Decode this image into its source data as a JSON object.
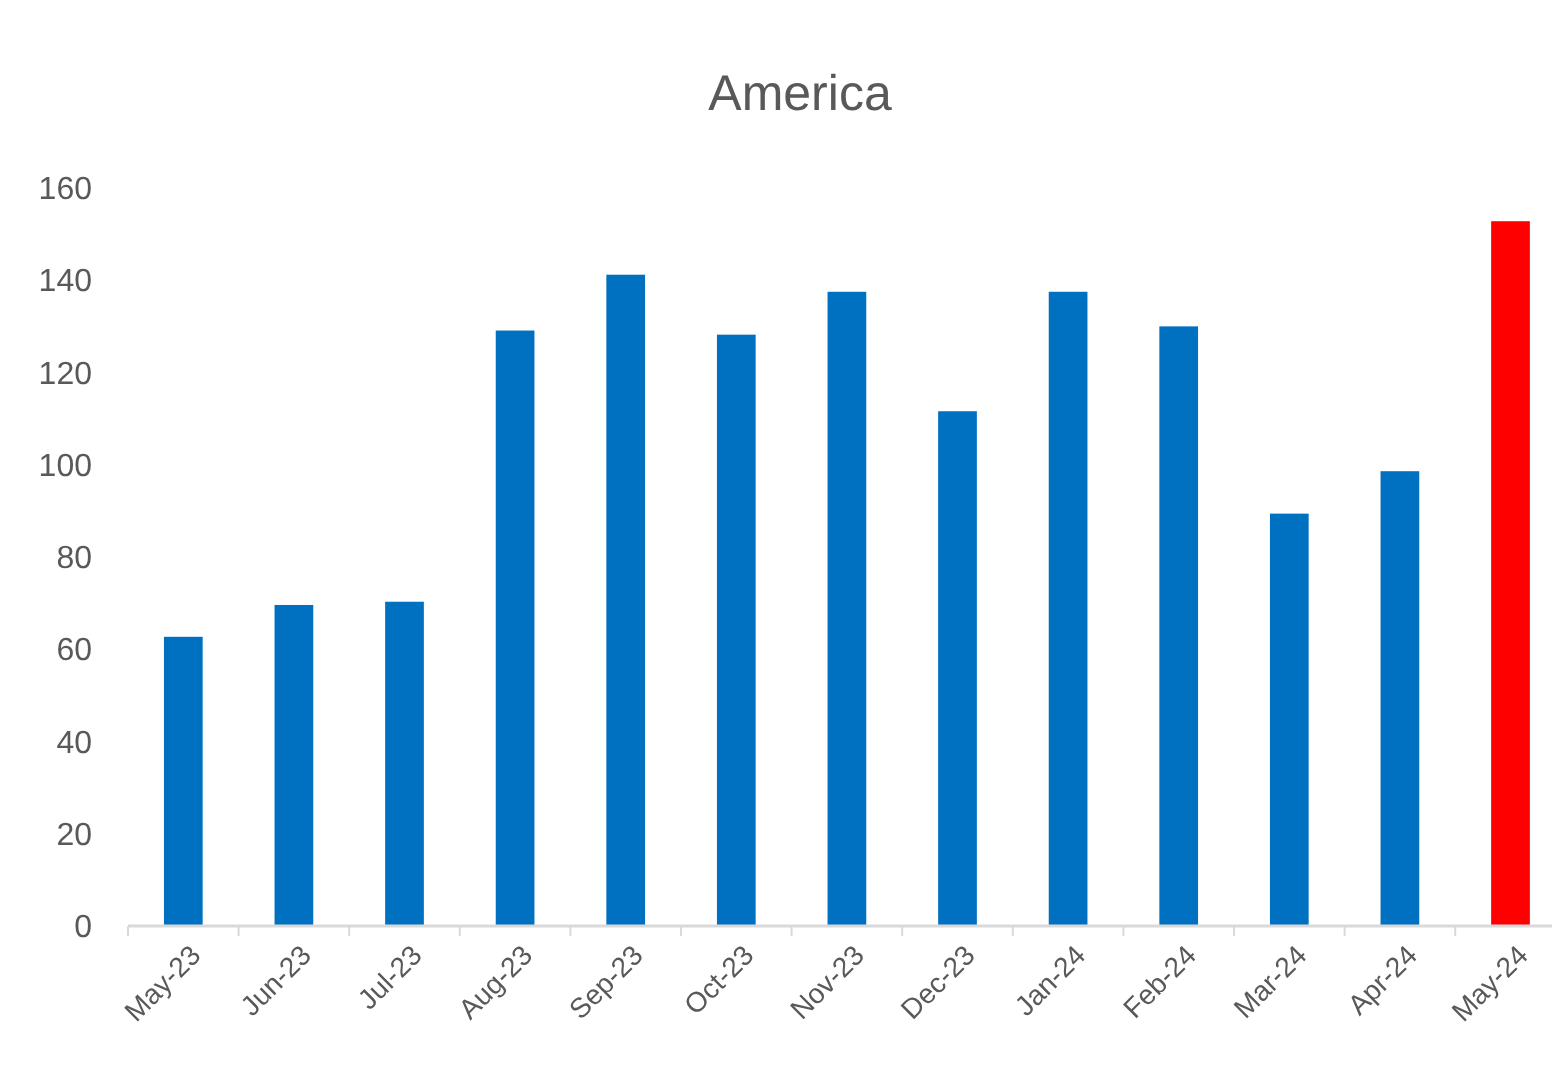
{
  "chart_data": {
    "type": "bar",
    "title": "America",
    "categories": [
      "May-23",
      "Jun-23",
      "Jul-23",
      "Aug-23",
      "Sep-23",
      "Oct-23",
      "Nov-23",
      "Dec-23",
      "Jan-24",
      "Feb-24",
      "Mar-24",
      "Apr-24",
      "May-24"
    ],
    "values": [
      62.7,
      69.6,
      70.3,
      129.1,
      141.2,
      128.2,
      137.5,
      111.6,
      137.5,
      130,
      89.4,
      98.6,
      152.8
    ],
    "colors": [
      "#0070c0",
      "#0070c0",
      "#0070c0",
      "#0070c0",
      "#0070c0",
      "#0070c0",
      "#0070c0",
      "#0070c0",
      "#0070c0",
      "#0070c0",
      "#0070c0",
      "#0070c0",
      "#ff0000"
    ],
    "ylim": [
      0,
      160
    ],
    "yticks": [
      0,
      20,
      40,
      60,
      80,
      100,
      120,
      140,
      160
    ]
  }
}
